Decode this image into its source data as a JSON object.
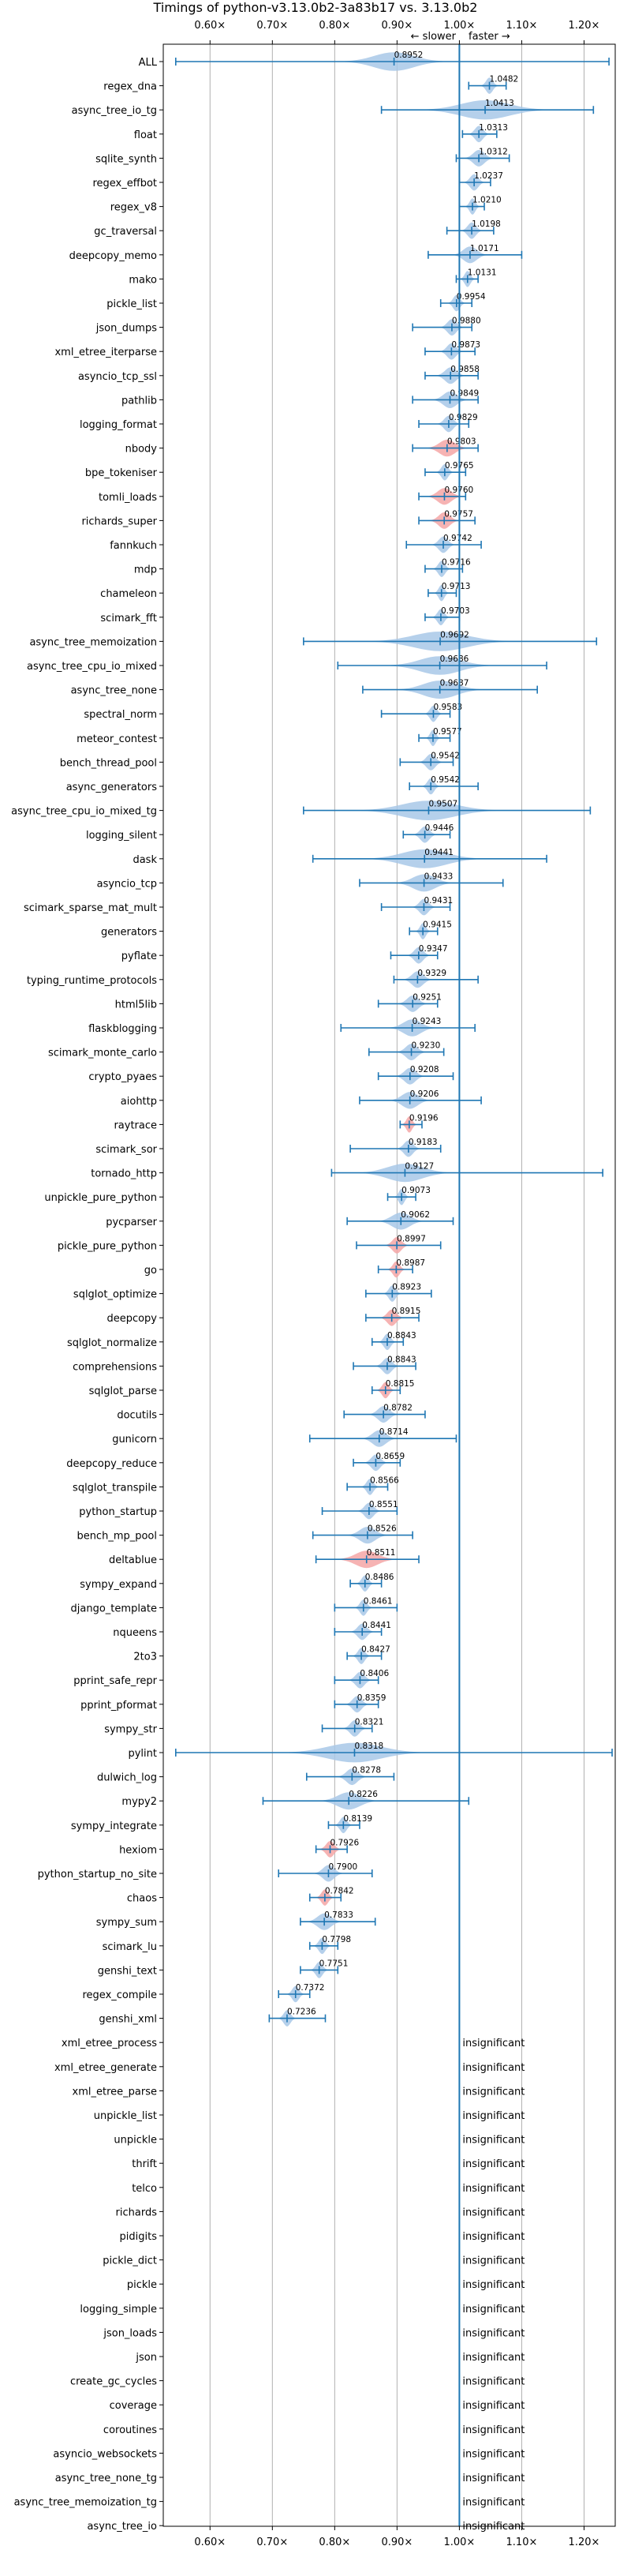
{
  "chart_data": {
    "type": "violin",
    "title": "Timings of python-v3.13.0b2-3a83b17 vs. 3.13.0b2",
    "direction_labels": {
      "slower": "← slower",
      "faster": "faster →"
    },
    "xlim": [
      0.525,
      1.25
    ],
    "x_ticks": [
      0.6,
      0.7,
      0.8,
      0.9,
      1.0,
      1.1,
      1.2
    ],
    "x_tick_labels": [
      "0.60×",
      "0.70×",
      "0.80×",
      "0.90×",
      "1.00×",
      "1.10×",
      "1.20×"
    ],
    "grid": true,
    "colors": {
      "faster": "#a8c8e8",
      "slower": "#f4a6a6",
      "errorbar": "#1f77b4",
      "reference_line": "#1f77b4"
    },
    "insignificant_label": "insignificant",
    "benchmarks": [
      {
        "name": "ALL",
        "value": 0.8952,
        "low": 0.545,
        "high": 1.24,
        "spread": 0.09,
        "status": "faster",
        "label": "0.8952"
      },
      {
        "name": "regex_dna",
        "value": 1.0482,
        "low": 1.015,
        "high": 1.075,
        "spread": 0.015,
        "status": "faster",
        "label": "1.0482"
      },
      {
        "name": "async_tree_io_tg",
        "value": 1.0413,
        "low": 0.875,
        "high": 1.215,
        "spread": 0.11,
        "status": "faster",
        "label": "1.0413"
      },
      {
        "name": "float",
        "value": 1.0313,
        "low": 1.005,
        "high": 1.06,
        "spread": 0.018,
        "status": "faster",
        "label": "1.0313"
      },
      {
        "name": "sqlite_synth",
        "value": 1.0312,
        "low": 0.995,
        "high": 1.08,
        "spread": 0.025,
        "status": "faster",
        "label": "1.0312"
      },
      {
        "name": "regex_effbot",
        "value": 1.0237,
        "low": 1.0,
        "high": 1.05,
        "spread": 0.018,
        "status": "faster",
        "label": "1.0237"
      },
      {
        "name": "regex_v8",
        "value": 1.021,
        "low": 1.0,
        "high": 1.04,
        "spread": 0.012,
        "status": "faster",
        "label": "1.0210"
      },
      {
        "name": "gc_traversal",
        "value": 1.0198,
        "low": 0.98,
        "high": 1.055,
        "spread": 0.018,
        "status": "faster",
        "label": "1.0198"
      },
      {
        "name": "deepcopy_memo",
        "value": 1.0171,
        "low": 0.95,
        "high": 1.1,
        "spread": 0.03,
        "status": "faster",
        "label": "1.0171"
      },
      {
        "name": "mako",
        "value": 1.0131,
        "low": 0.995,
        "high": 1.03,
        "spread": 0.01,
        "status": "faster",
        "label": "1.0131"
      },
      {
        "name": "pickle_list",
        "value": 0.9954,
        "low": 0.97,
        "high": 1.02,
        "spread": 0.015,
        "status": "faster",
        "label": "0.9954"
      },
      {
        "name": "json_dumps",
        "value": 0.988,
        "low": 0.925,
        "high": 1.02,
        "spread": 0.02,
        "status": "faster",
        "label": "0.9880"
      },
      {
        "name": "xml_etree_iterparse",
        "value": 0.9873,
        "low": 0.945,
        "high": 1.025,
        "spread": 0.02,
        "status": "faster",
        "label": "0.9873"
      },
      {
        "name": "asyncio_tcp_ssl",
        "value": 0.9858,
        "low": 0.945,
        "high": 1.03,
        "spread": 0.025,
        "status": "faster",
        "label": "0.9858"
      },
      {
        "name": "pathlib",
        "value": 0.9849,
        "low": 0.925,
        "high": 1.03,
        "spread": 0.03,
        "status": "faster",
        "label": "0.9849"
      },
      {
        "name": "logging_format",
        "value": 0.9829,
        "low": 0.935,
        "high": 1.015,
        "spread": 0.02,
        "status": "faster",
        "label": "0.9829"
      },
      {
        "name": "nbody",
        "value": 0.9803,
        "low": 0.925,
        "high": 1.03,
        "spread": 0.035,
        "status": "slower",
        "label": "0.9803"
      },
      {
        "name": "bpe_tokeniser",
        "value": 0.9765,
        "low": 0.945,
        "high": 1.01,
        "spread": 0.015,
        "status": "faster",
        "label": "0.9765"
      },
      {
        "name": "tomli_loads",
        "value": 0.976,
        "low": 0.935,
        "high": 1.01,
        "spread": 0.03,
        "status": "slower",
        "label": "0.9760"
      },
      {
        "name": "richards_super",
        "value": 0.9757,
        "low": 0.935,
        "high": 1.025,
        "spread": 0.025,
        "status": "slower",
        "label": "0.9757"
      },
      {
        "name": "fannkuch",
        "value": 0.9742,
        "low": 0.915,
        "high": 1.035,
        "spread": 0.02,
        "status": "faster",
        "label": "0.9742"
      },
      {
        "name": "mdp",
        "value": 0.9716,
        "low": 0.945,
        "high": 1.005,
        "spread": 0.015,
        "status": "faster",
        "label": "0.9716"
      },
      {
        "name": "chameleon",
        "value": 0.9713,
        "low": 0.95,
        "high": 0.995,
        "spread": 0.012,
        "status": "faster",
        "label": "0.9713"
      },
      {
        "name": "scimark_fft",
        "value": 0.9703,
        "low": 0.945,
        "high": 1.0,
        "spread": 0.015,
        "status": "faster",
        "label": "0.9703"
      },
      {
        "name": "async_tree_memoization",
        "value": 0.9692,
        "low": 0.75,
        "high": 1.22,
        "spread": 0.12,
        "status": "faster",
        "label": "0.9692"
      },
      {
        "name": "async_tree_cpu_io_mixed",
        "value": 0.9686,
        "low": 0.805,
        "high": 1.14,
        "spread": 0.09,
        "status": "faster",
        "label": "0.9686"
      },
      {
        "name": "async_tree_none",
        "value": 0.9687,
        "low": 0.845,
        "high": 1.125,
        "spread": 0.075,
        "status": "faster",
        "label": "0.9687"
      },
      {
        "name": "spectral_norm",
        "value": 0.9583,
        "low": 0.875,
        "high": 0.985,
        "spread": 0.015,
        "status": "faster",
        "label": "0.9583"
      },
      {
        "name": "meteor_contest",
        "value": 0.9577,
        "low": 0.935,
        "high": 0.985,
        "spread": 0.012,
        "status": "faster",
        "label": "0.9577"
      },
      {
        "name": "bench_thread_pool",
        "value": 0.9542,
        "low": 0.905,
        "high": 0.99,
        "spread": 0.02,
        "status": "faster",
        "label": "0.9542"
      },
      {
        "name": "async_generators",
        "value": 0.9542,
        "low": 0.92,
        "high": 1.03,
        "spread": 0.015,
        "status": "faster",
        "label": "0.9542"
      },
      {
        "name": "async_tree_cpu_io_mixed_tg",
        "value": 0.9507,
        "low": 0.75,
        "high": 1.21,
        "spread": 0.12,
        "status": "faster",
        "label": "0.9507"
      },
      {
        "name": "logging_silent",
        "value": 0.9446,
        "low": 0.91,
        "high": 0.985,
        "spread": 0.02,
        "status": "faster",
        "label": "0.9446"
      },
      {
        "name": "dask",
        "value": 0.9441,
        "low": 0.765,
        "high": 1.14,
        "spread": 0.1,
        "status": "faster",
        "label": "0.9441"
      },
      {
        "name": "asyncio_tcp",
        "value": 0.9433,
        "low": 0.84,
        "high": 1.07,
        "spread": 0.05,
        "status": "faster",
        "label": "0.9433"
      },
      {
        "name": "scimark_sparse_mat_mult",
        "value": 0.9431,
        "low": 0.875,
        "high": 0.985,
        "spread": 0.02,
        "status": "faster",
        "label": "0.9431"
      },
      {
        "name": "generators",
        "value": 0.9415,
        "low": 0.92,
        "high": 0.965,
        "spread": 0.012,
        "status": "faster",
        "label": "0.9415"
      },
      {
        "name": "pyflate",
        "value": 0.9347,
        "low": 0.89,
        "high": 0.965,
        "spread": 0.02,
        "status": "faster",
        "label": "0.9347"
      },
      {
        "name": "typing_runtime_protocols",
        "value": 0.9329,
        "low": 0.895,
        "high": 1.03,
        "spread": 0.025,
        "status": "faster",
        "label": "0.9329"
      },
      {
        "name": "html5lib",
        "value": 0.9251,
        "low": 0.87,
        "high": 0.965,
        "spread": 0.025,
        "status": "faster",
        "label": "0.9251"
      },
      {
        "name": "flaskblogging",
        "value": 0.9243,
        "low": 0.81,
        "high": 1.025,
        "spread": 0.04,
        "status": "faster",
        "label": "0.9243"
      },
      {
        "name": "scimark_monte_carlo",
        "value": 0.923,
        "low": 0.855,
        "high": 0.975,
        "spread": 0.025,
        "status": "faster",
        "label": "0.9230"
      },
      {
        "name": "crypto_pyaes",
        "value": 0.9208,
        "low": 0.87,
        "high": 0.99,
        "spread": 0.025,
        "status": "faster",
        "label": "0.9208"
      },
      {
        "name": "aiohttp",
        "value": 0.9206,
        "low": 0.84,
        "high": 1.035,
        "spread": 0.035,
        "status": "faster",
        "label": "0.9206"
      },
      {
        "name": "raytrace",
        "value": 0.9196,
        "low": 0.905,
        "high": 0.94,
        "spread": 0.012,
        "status": "slower",
        "label": "0.9196"
      },
      {
        "name": "scimark_sor",
        "value": 0.9183,
        "low": 0.825,
        "high": 0.97,
        "spread": 0.02,
        "status": "faster",
        "label": "0.9183"
      },
      {
        "name": "tornado_http",
        "value": 0.9127,
        "low": 0.795,
        "high": 1.23,
        "spread": 0.08,
        "status": "faster",
        "label": "0.9127"
      },
      {
        "name": "unpickle_pure_python",
        "value": 0.9073,
        "low": 0.885,
        "high": 0.93,
        "spread": 0.012,
        "status": "faster",
        "label": "0.9073"
      },
      {
        "name": "pycparser",
        "value": 0.9062,
        "low": 0.82,
        "high": 0.99,
        "spread": 0.04,
        "status": "faster",
        "label": "0.9062"
      },
      {
        "name": "pickle_pure_python",
        "value": 0.8997,
        "low": 0.835,
        "high": 0.97,
        "spread": 0.02,
        "status": "slower",
        "label": "0.8997"
      },
      {
        "name": "go",
        "value": 0.8987,
        "low": 0.87,
        "high": 0.925,
        "spread": 0.015,
        "status": "slower",
        "label": "0.8987"
      },
      {
        "name": "sqlglot_optimize",
        "value": 0.8923,
        "low": 0.85,
        "high": 0.955,
        "spread": 0.015,
        "status": "faster",
        "label": "0.8923"
      },
      {
        "name": "deepcopy",
        "value": 0.8915,
        "low": 0.85,
        "high": 0.935,
        "spread": 0.02,
        "status": "slower",
        "label": "0.8915"
      },
      {
        "name": "sqlglot_normalize",
        "value": 0.8843,
        "low": 0.86,
        "high": 0.91,
        "spread": 0.015,
        "status": "faster",
        "label": "0.8843"
      },
      {
        "name": "comprehensions",
        "value": 0.8843,
        "low": 0.83,
        "high": 0.93,
        "spread": 0.02,
        "status": "faster",
        "label": "0.8843"
      },
      {
        "name": "sqlglot_parse",
        "value": 0.8815,
        "low": 0.86,
        "high": 0.905,
        "spread": 0.015,
        "status": "slower",
        "label": "0.8815"
      },
      {
        "name": "docutils",
        "value": 0.8782,
        "low": 0.815,
        "high": 0.945,
        "spread": 0.025,
        "status": "faster",
        "label": "0.8782"
      },
      {
        "name": "gunicorn",
        "value": 0.8714,
        "low": 0.76,
        "high": 0.995,
        "spread": 0.03,
        "status": "faster",
        "label": "0.8714"
      },
      {
        "name": "deepcopy_reduce",
        "value": 0.8659,
        "low": 0.83,
        "high": 0.905,
        "spread": 0.02,
        "status": "faster",
        "label": "0.8659"
      },
      {
        "name": "sqlglot_transpile",
        "value": 0.8566,
        "low": 0.82,
        "high": 0.885,
        "spread": 0.015,
        "status": "faster",
        "label": "0.8566"
      },
      {
        "name": "python_startup",
        "value": 0.8551,
        "low": 0.78,
        "high": 0.9,
        "spread": 0.02,
        "status": "faster",
        "label": "0.8551"
      },
      {
        "name": "bench_mp_pool",
        "value": 0.8526,
        "low": 0.765,
        "high": 0.925,
        "spread": 0.035,
        "status": "faster",
        "label": "0.8526"
      },
      {
        "name": "deltablue",
        "value": 0.8511,
        "low": 0.77,
        "high": 0.935,
        "spread": 0.05,
        "status": "slower",
        "label": "0.8511"
      },
      {
        "name": "sympy_expand",
        "value": 0.8486,
        "low": 0.825,
        "high": 0.875,
        "spread": 0.015,
        "status": "faster",
        "label": "0.8486"
      },
      {
        "name": "django_template",
        "value": 0.8461,
        "low": 0.8,
        "high": 0.9,
        "spread": 0.015,
        "status": "faster",
        "label": "0.8461"
      },
      {
        "name": "nqueens",
        "value": 0.8441,
        "low": 0.8,
        "high": 0.875,
        "spread": 0.02,
        "status": "faster",
        "label": "0.8441"
      },
      {
        "name": "2to3",
        "value": 0.8427,
        "low": 0.82,
        "high": 0.875,
        "spread": 0.015,
        "status": "faster",
        "label": "0.8427"
      },
      {
        "name": "pprint_safe_repr",
        "value": 0.8406,
        "low": 0.8,
        "high": 0.87,
        "spread": 0.02,
        "status": "faster",
        "label": "0.8406"
      },
      {
        "name": "pprint_pformat",
        "value": 0.8359,
        "low": 0.8,
        "high": 0.87,
        "spread": 0.02,
        "status": "faster",
        "label": "0.8359"
      },
      {
        "name": "sympy_str",
        "value": 0.8321,
        "low": 0.78,
        "high": 0.86,
        "spread": 0.02,
        "status": "faster",
        "label": "0.8321"
      },
      {
        "name": "pylint",
        "value": 0.8318,
        "low": 0.545,
        "high": 1.245,
        "spread": 0.12,
        "status": "faster",
        "label": "0.8318"
      },
      {
        "name": "dulwich_log",
        "value": 0.8278,
        "low": 0.755,
        "high": 0.895,
        "spread": 0.025,
        "status": "faster",
        "label": "0.8278"
      },
      {
        "name": "mypy2",
        "value": 0.8226,
        "low": 0.685,
        "high": 1.015,
        "spread": 0.05,
        "status": "faster",
        "label": "0.8226"
      },
      {
        "name": "sympy_integrate",
        "value": 0.8139,
        "low": 0.79,
        "high": 0.84,
        "spread": 0.015,
        "status": "faster",
        "label": "0.8139"
      },
      {
        "name": "hexiom",
        "value": 0.7926,
        "low": 0.77,
        "high": 0.82,
        "spread": 0.018,
        "status": "slower",
        "label": "0.7926"
      },
      {
        "name": "python_startup_no_site",
        "value": 0.79,
        "low": 0.71,
        "high": 0.86,
        "spread": 0.025,
        "status": "faster",
        "label": "0.7900"
      },
      {
        "name": "chaos",
        "value": 0.7842,
        "low": 0.76,
        "high": 0.81,
        "spread": 0.015,
        "status": "slower",
        "label": "0.7842"
      },
      {
        "name": "sympy_sum",
        "value": 0.7833,
        "low": 0.745,
        "high": 0.865,
        "spread": 0.03,
        "status": "faster",
        "label": "0.7833"
      },
      {
        "name": "scimark_lu",
        "value": 0.7798,
        "low": 0.76,
        "high": 0.805,
        "spread": 0.015,
        "status": "faster",
        "label": "0.7798"
      },
      {
        "name": "genshi_text",
        "value": 0.7751,
        "low": 0.745,
        "high": 0.805,
        "spread": 0.015,
        "status": "faster",
        "label": "0.7751"
      },
      {
        "name": "regex_compile",
        "value": 0.7372,
        "low": 0.71,
        "high": 0.76,
        "spread": 0.015,
        "status": "faster",
        "label": "0.7372"
      },
      {
        "name": "genshi_xml",
        "value": 0.7236,
        "low": 0.695,
        "high": 0.785,
        "spread": 0.015,
        "status": "faster",
        "label": "0.7236"
      },
      {
        "name": "xml_etree_process",
        "status": "insignificant"
      },
      {
        "name": "xml_etree_generate",
        "status": "insignificant"
      },
      {
        "name": "xml_etree_parse",
        "status": "insignificant"
      },
      {
        "name": "unpickle_list",
        "status": "insignificant"
      },
      {
        "name": "unpickle",
        "status": "insignificant"
      },
      {
        "name": "thrift",
        "status": "insignificant"
      },
      {
        "name": "telco",
        "status": "insignificant"
      },
      {
        "name": "richards",
        "status": "insignificant"
      },
      {
        "name": "pidigits",
        "status": "insignificant"
      },
      {
        "name": "pickle_dict",
        "status": "insignificant"
      },
      {
        "name": "pickle",
        "status": "insignificant"
      },
      {
        "name": "logging_simple",
        "status": "insignificant"
      },
      {
        "name": "json_loads",
        "status": "insignificant"
      },
      {
        "name": "json",
        "status": "insignificant"
      },
      {
        "name": "create_gc_cycles",
        "status": "insignificant"
      },
      {
        "name": "coverage",
        "status": "insignificant"
      },
      {
        "name": "coroutines",
        "status": "insignificant"
      },
      {
        "name": "asyncio_websockets",
        "status": "insignificant"
      },
      {
        "name": "async_tree_none_tg",
        "status": "insignificant"
      },
      {
        "name": "async_tree_memoization_tg",
        "status": "insignificant"
      },
      {
        "name": "async_tree_io",
        "status": "insignificant"
      }
    ]
  }
}
